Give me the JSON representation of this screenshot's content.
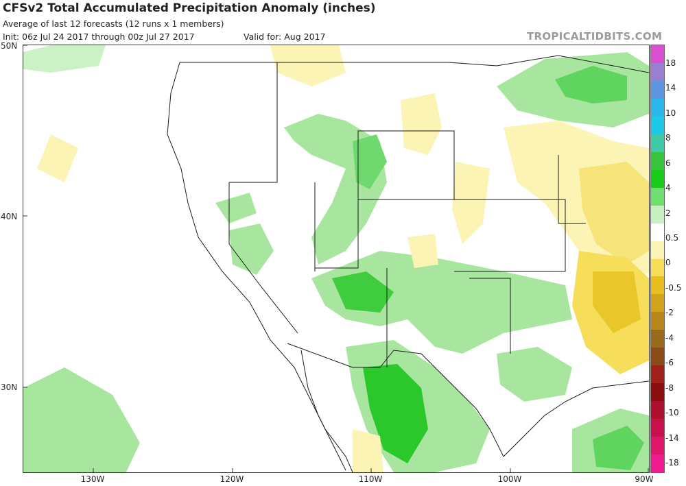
{
  "header": {
    "title": "CFSv2 Total Accumulated Precipitation Anomaly (inches)",
    "subtitle": "Average of last 12 forecasts (12 runs x 1 members)",
    "init": "Init: 06z Jul 24 2017 through 00z Jul 27 2017",
    "valid": "Valid for: Aug 2017",
    "watermark": "TROPICALTIDBITS.COM"
  },
  "axes": {
    "lat_labels": [
      "50N",
      "40N",
      "30N"
    ],
    "lon_labels": [
      "130W",
      "120W",
      "110W",
      "100W",
      "90W"
    ]
  },
  "legend": {
    "labels": [
      "18",
      "14",
      "10",
      "8",
      "6",
      "4",
      "2",
      "0.5",
      "0",
      "-0.5",
      "-2",
      "-4",
      "-6",
      "-8",
      "-10",
      "-14",
      "-18"
    ],
    "colors": [
      "#d94fd1",
      "#9a7fd0",
      "#5f96e0",
      "#2bb6ec",
      "#1ec9e8",
      "#3fcaa8",
      "#38c43c",
      "#17cc17",
      "#6fe06f",
      "#c6f0c0",
      "#ffffff",
      "#fbf4b4",
      "#f6de5a",
      "#e7c01d",
      "#d1a21a",
      "#b8871c",
      "#9a6a1c",
      "#8d4b18",
      "#a0201a",
      "#8d0e0e",
      "#b0102f",
      "#c8124e",
      "#e0156c",
      "#f11a91"
    ]
  }
}
